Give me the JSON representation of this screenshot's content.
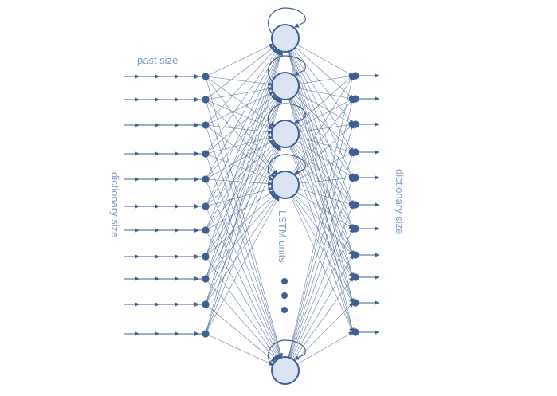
{
  "labels": {
    "past_size": "past size",
    "dictionary_size_left": "dictionary size",
    "dictionary_size_right": "dictionary size",
    "lstm_units": "LSTM units"
  },
  "colors": {
    "line": "#3f5f93",
    "node_fill": "#dbe4f2",
    "text": "#7f9cc4"
  }
}
